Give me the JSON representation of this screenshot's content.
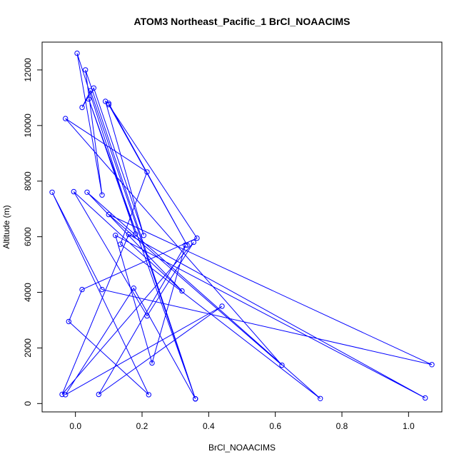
{
  "chart_data": {
    "type": "line",
    "title": "ATOM3 Northeast_Pacific_1 BrCl_NOAACIMS",
    "xlabel": "BrCl_NOAACIMS",
    "ylabel": "Altitude (m)",
    "xlim": [
      -0.1,
      1.1
    ],
    "ylim": [
      -300,
      13000
    ],
    "x_ticks": [
      0,
      0.2,
      0.4,
      0.6,
      0.8,
      1
    ],
    "x_tick_labels": [
      "0.0",
      "0.2",
      "0.4",
      "0.6",
      "0.8",
      "1.0"
    ],
    "y_ticks": [
      0,
      2000,
      4000,
      6000,
      8000,
      10000,
      12000
    ],
    "y_tick_labels": [
      "0",
      "2000",
      "4000",
      "6000",
      "8000",
      "10000",
      "12000"
    ],
    "grid": false,
    "series": [
      {
        "color": "#0000ff",
        "marker": "open-circle",
        "points": [
          [
            0.36,
            170
          ],
          [
            0.04,
            10950
          ],
          [
            0.18,
            6100
          ],
          [
            0.005,
            12600
          ],
          [
            0.08,
            7500
          ],
          [
            0.03,
            12000
          ],
          [
            0.36,
            170
          ],
          [
            0.045,
            11250
          ],
          [
            0.02,
            10650
          ],
          [
            0.055,
            11350
          ],
          [
            0.205,
            6050
          ],
          [
            0.09,
            10870
          ],
          [
            0.1,
            10800
          ],
          [
            0.335,
            5700
          ],
          [
            0.1,
            10750
          ],
          [
            0.365,
            5950
          ],
          [
            0.02,
            4100
          ],
          [
            -0.02,
            2950
          ],
          [
            0.22,
            320
          ],
          [
            -0.07,
            7600
          ],
          [
            0.08,
            4100
          ],
          [
            1.07,
            1400
          ],
          [
            0.1,
            6800
          ],
          [
            0.62,
            1380
          ],
          [
            -0.03,
            10250
          ],
          [
            0.215,
            8330
          ],
          [
            0.135,
            5730
          ],
          [
            0.735,
            180
          ],
          [
            0.035,
            7600
          ],
          [
            0.32,
            4050
          ],
          [
            -0.005,
            7620
          ],
          [
            0.215,
            3150
          ],
          [
            0.355,
            5800
          ],
          [
            -0.04,
            330
          ],
          [
            0.16,
            6080
          ],
          [
            1.05,
            200
          ],
          [
            0.12,
            6050
          ],
          [
            0.23,
            1460
          ],
          [
            0.33,
            5700
          ],
          [
            0.07,
            330
          ],
          [
            0.44,
            3500
          ],
          [
            -0.03,
            320
          ],
          [
            0.175,
            4150
          ],
          [
            0.36,
            170
          ]
        ]
      }
    ]
  }
}
